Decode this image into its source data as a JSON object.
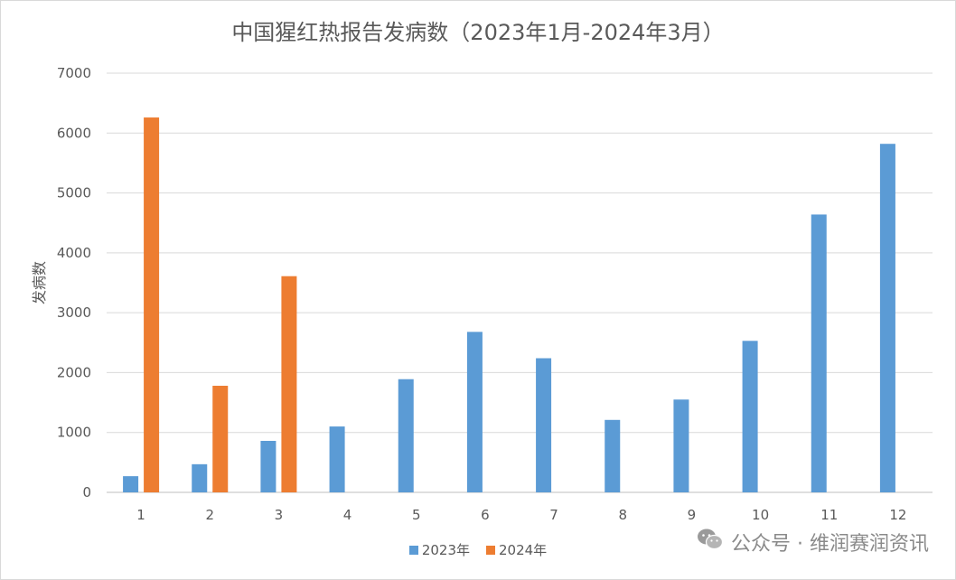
{
  "chart_data": {
    "type": "bar",
    "title": "中国猩红热报告发病数（2023年1月-2024年3月）",
    "xlabel": "",
    "ylabel": "发病数",
    "ylim": [
      0,
      7000
    ],
    "yticks": [
      0,
      1000,
      2000,
      3000,
      4000,
      5000,
      6000,
      7000
    ],
    "categories": [
      "1",
      "2",
      "3",
      "4",
      "5",
      "6",
      "7",
      "8",
      "9",
      "10",
      "11",
      "12"
    ],
    "series": [
      {
        "name": "2023年",
        "color": "#5b9bd5",
        "values": [
          270,
          470,
          860,
          1100,
          1890,
          2680,
          2240,
          1210,
          1550,
          2530,
          4640,
          5820
        ]
      },
      {
        "name": "2024年",
        "color": "#ed7d31",
        "values": [
          6260,
          1780,
          3610,
          null,
          null,
          null,
          null,
          null,
          null,
          null,
          null,
          null
        ]
      }
    ],
    "grid": true,
    "legend_position": "bottom"
  },
  "watermark": {
    "text": "公众号 · 维润赛润资讯",
    "icon": "wechat-icon"
  }
}
